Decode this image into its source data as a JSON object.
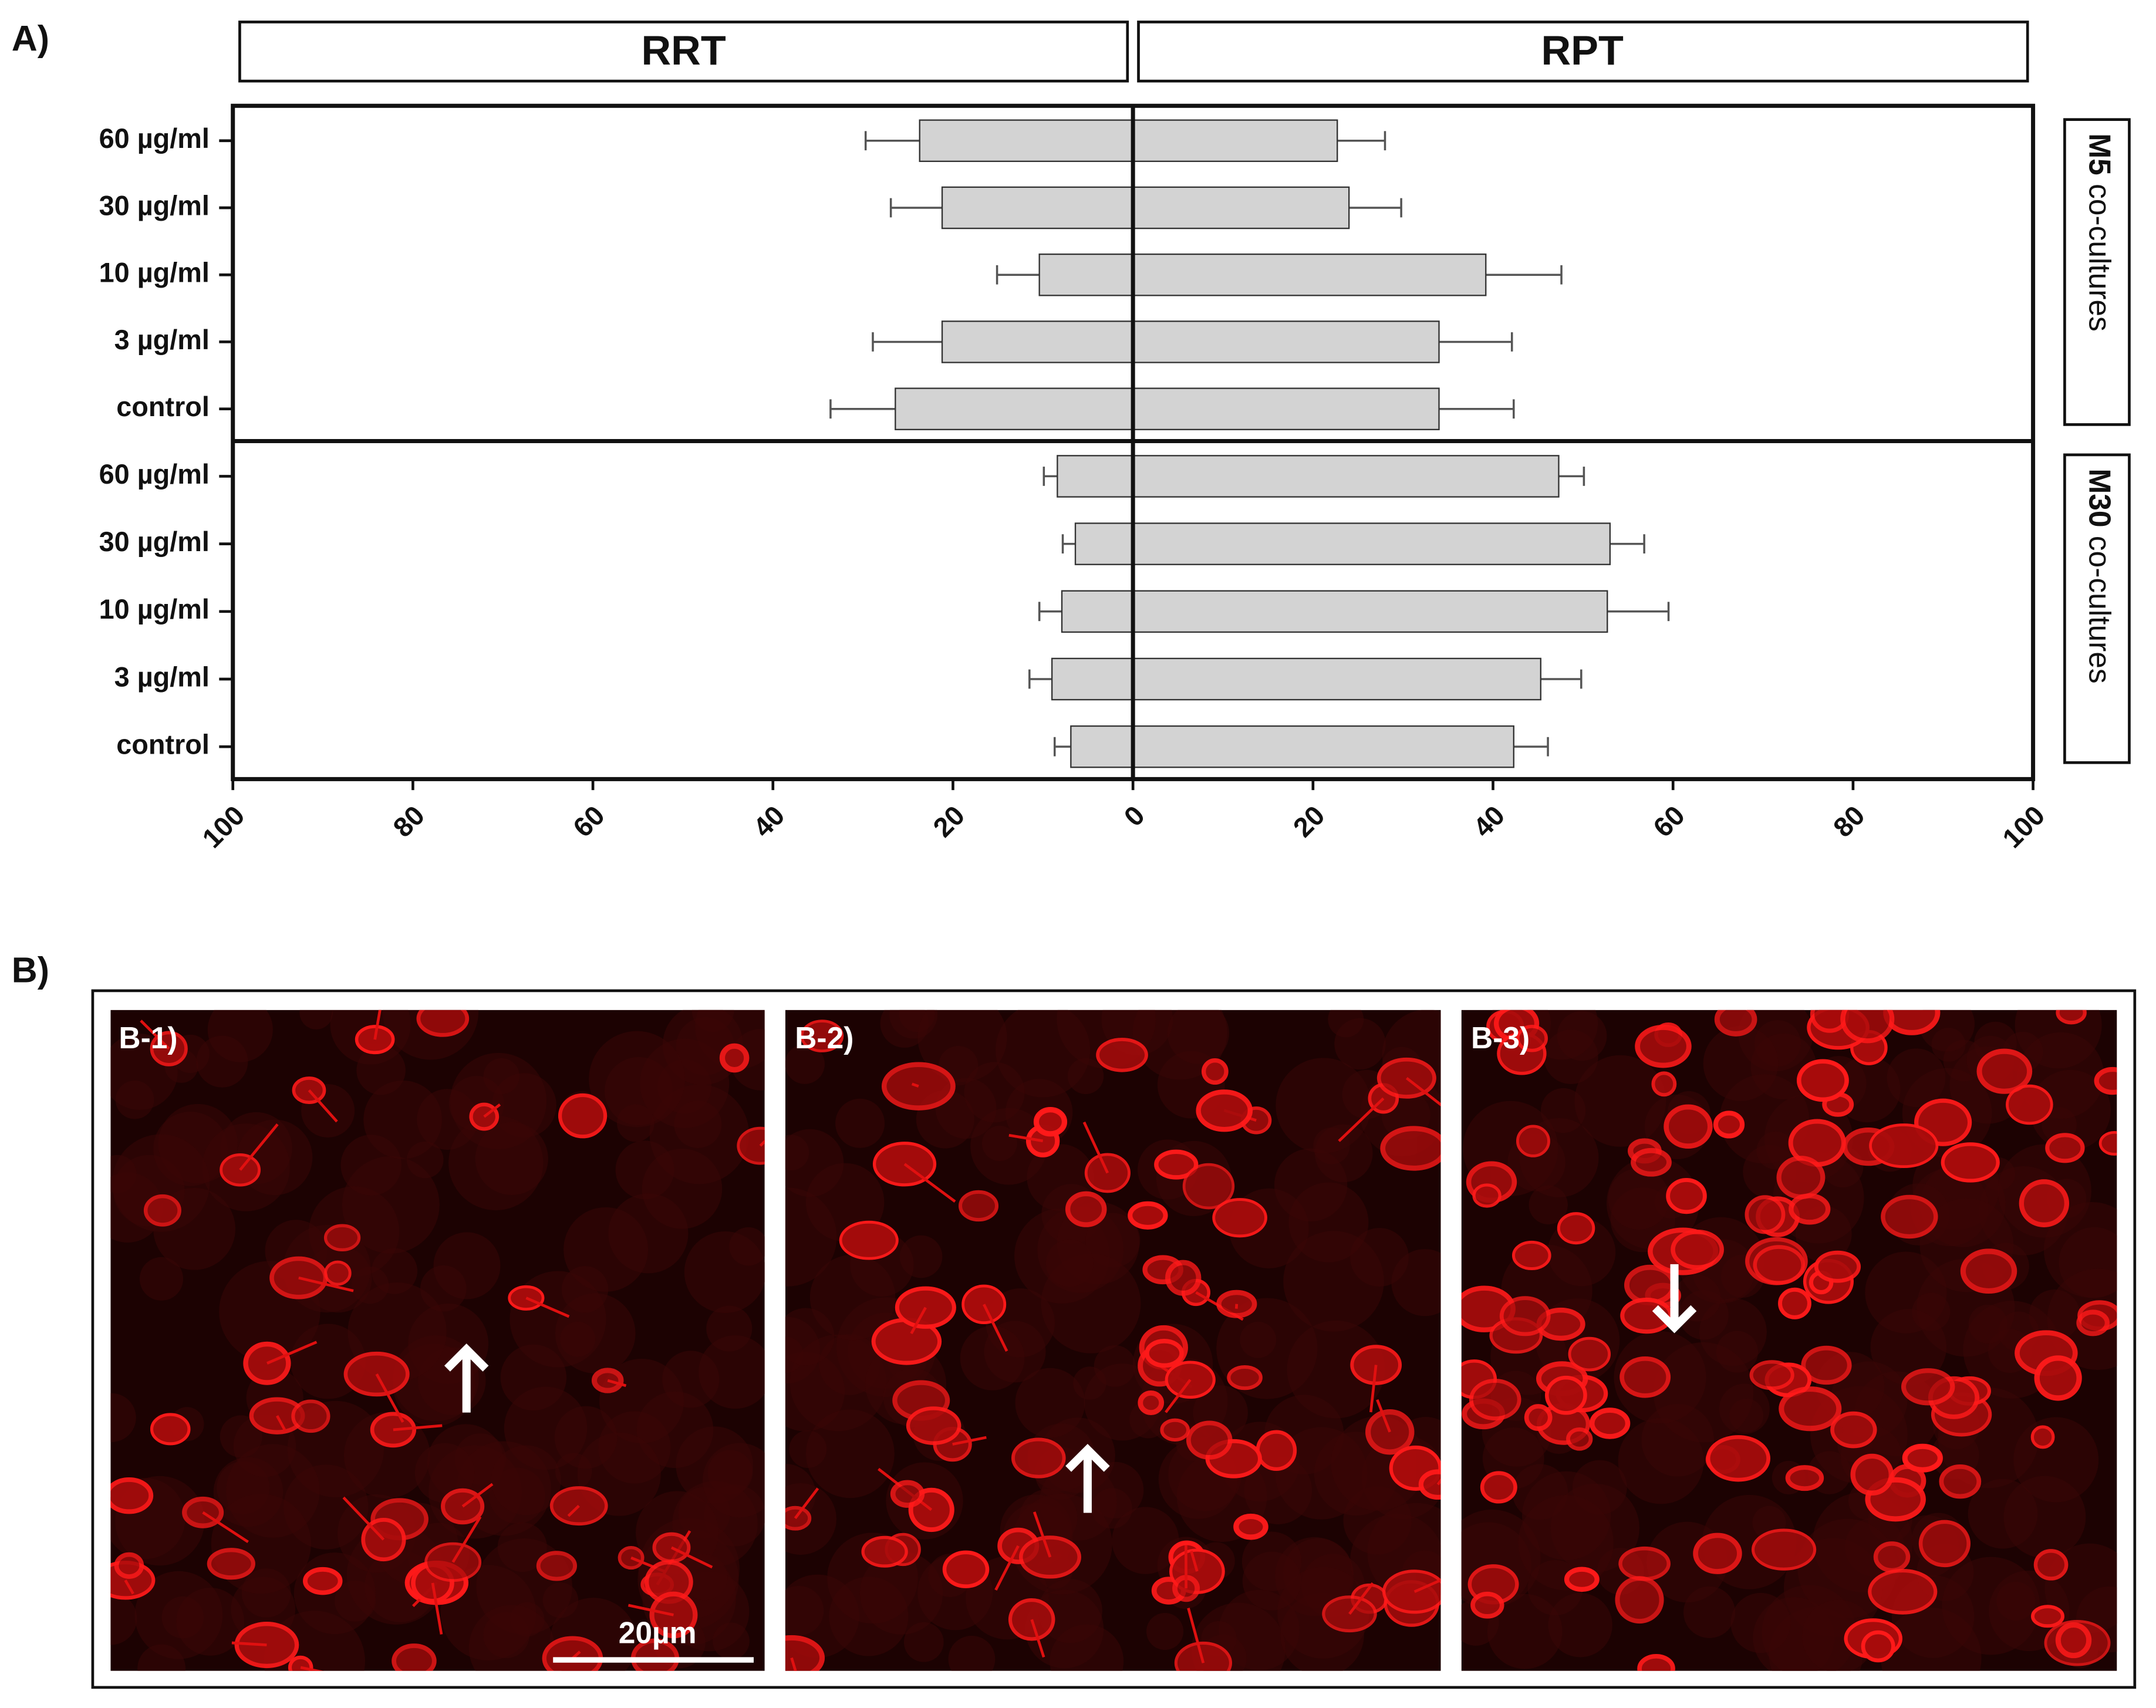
{
  "chart_data": {
    "type": "bar",
    "panel_label": "A)",
    "series": [
      {
        "name": "RRT",
        "direction": "left",
        "color": "#d3d3d3"
      },
      {
        "name": "RPT",
        "direction": "right",
        "color": "#d3d3d3"
      }
    ],
    "panels": [
      {
        "label": {
          "bold": "M5",
          "text": " co-cultures"
        },
        "categories": [
          "60 µg/ml",
          "30 µg/ml",
          "10 µg/ml",
          "3 µg/ml",
          "control"
        ],
        "values": [
          [
            23.7,
            21.2,
            10.4,
            21.2,
            26.4
          ],
          [
            22.7,
            24,
            39.2,
            34,
            34
          ]
        ],
        "errors": [
          [
            6,
            5.7,
            4.7,
            7.7,
            7.2
          ],
          [
            5.3,
            5.8,
            8.4,
            8.1,
            8.3
          ]
        ]
      },
      {
        "label": {
          "bold": "M30",
          "text": " co-cultures"
        },
        "categories": [
          "60 µg/ml",
          "30 µg/ml",
          "10 µg/ml",
          "3 µg/ml",
          "control"
        ],
        "values": [
          [
            8.4,
            6.4,
            7.9,
            9,
            6.9
          ],
          [
            47.3,
            53,
            52.7,
            45.3,
            42.3
          ]
        ],
        "errors": [
          [
            1.5,
            1.4,
            2.5,
            2.5,
            1.8
          ],
          [
            2.8,
            3.8,
            6.8,
            4.5,
            3.8
          ]
        ]
      }
    ],
    "xlim": [
      -100,
      100
    ],
    "xticks": [
      {
        "value": -100,
        "label": "100"
      },
      {
        "value": -80,
        "label": "80"
      },
      {
        "value": -60,
        "label": "60"
      },
      {
        "value": -40,
        "label": "40"
      },
      {
        "value": -20,
        "label": "20"
      },
      0,
      20,
      40,
      60,
      80,
      100
    ]
  },
  "figure_b": {
    "label": "B)",
    "panels": [
      {
        "label": "B-1)"
      },
      {
        "label": "B-2)"
      },
      {
        "label": "B-3)"
      }
    ],
    "scale_bar": "20µm"
  }
}
